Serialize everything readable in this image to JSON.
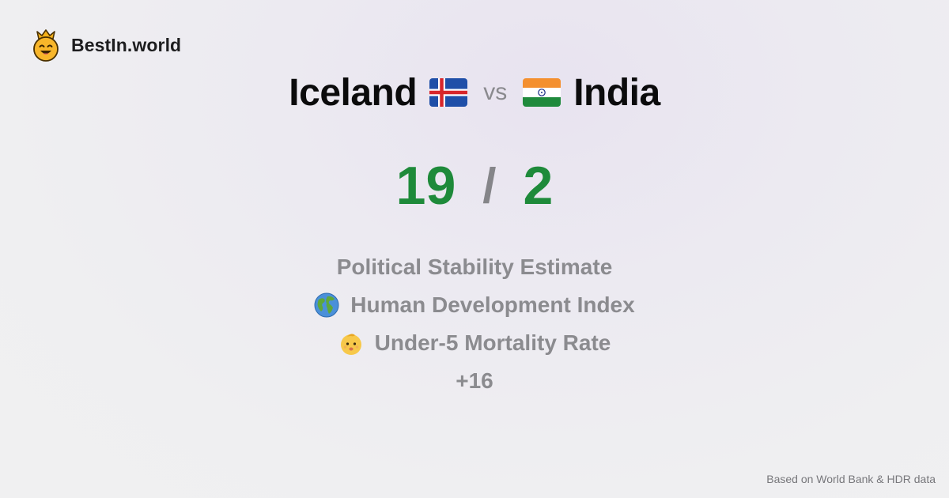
{
  "brand": {
    "name": "BestIn.world",
    "logo_icon": "crowned-smiley-icon"
  },
  "comparison": {
    "left_country": "Iceland",
    "left_flag": "iceland-flag-icon",
    "vs_label": "vs",
    "right_country": "India",
    "right_flag": "india-flag-icon"
  },
  "score": {
    "left": "19",
    "separator": "/",
    "right": "2",
    "color": "#1e8a3a"
  },
  "metrics": [
    {
      "label": "Political Stability Estimate",
      "icon": ""
    },
    {
      "label": "Human Development Index",
      "icon": "globe-icon"
    },
    {
      "label": "Under-5 Mortality Rate",
      "icon": "baby-icon"
    }
  ],
  "more_count": "+16",
  "footer": {
    "source": "Based on World Bank & HDR data"
  }
}
